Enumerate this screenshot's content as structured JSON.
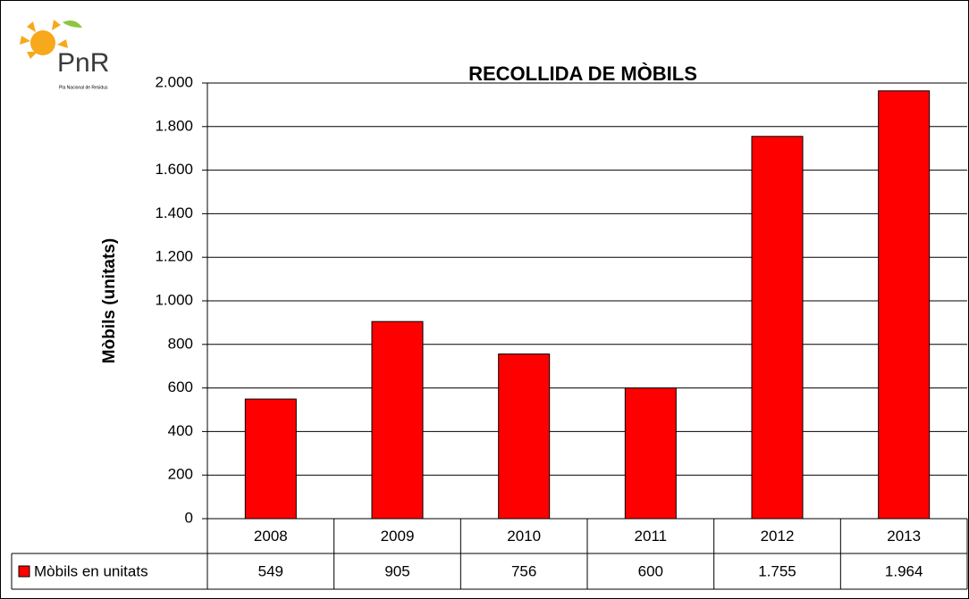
{
  "logo": {
    "text": "PnR",
    "subtitle": "Pla Nacional de Residus"
  },
  "chart_data": {
    "type": "bar",
    "title": "RECOLLIDA DE MÒBILS",
    "y_label": "Mòbils (unitats)",
    "categories": [
      "2008",
      "2009",
      "2010",
      "2011",
      "2012",
      "2013"
    ],
    "series": [
      {
        "name": "Mòbils en unitats",
        "color": "#ff0000",
        "values": [
          549,
          905,
          756,
          600,
          1755,
          1964
        ],
        "value_labels": [
          "549",
          "905",
          "756",
          "600",
          "1.755",
          "1.964"
        ]
      }
    ],
    "ylim": [
      0,
      2000
    ],
    "yticks": [
      0,
      200,
      400,
      600,
      800,
      {
        "value": 1000,
        "label": "1.000"
      },
      {
        "value": 1200,
        "label": "1.200"
      },
      {
        "value": 1400,
        "label": "1.400"
      },
      {
        "value": 1600,
        "label": "1.600"
      },
      {
        "value": 1800,
        "label": "1.800"
      },
      {
        "value": 2000,
        "label": "2.000"
      }
    ],
    "grid": true,
    "data_table": true
  }
}
